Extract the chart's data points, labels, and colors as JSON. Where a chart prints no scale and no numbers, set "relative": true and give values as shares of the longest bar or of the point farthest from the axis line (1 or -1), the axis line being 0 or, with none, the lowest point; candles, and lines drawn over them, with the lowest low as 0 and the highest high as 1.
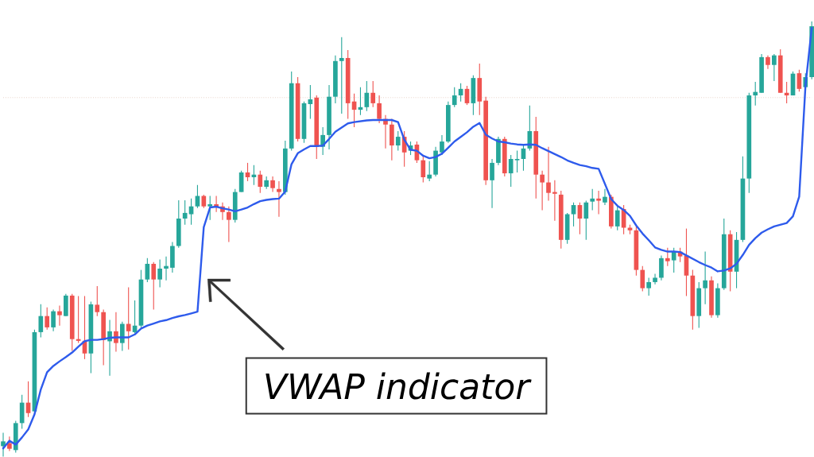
{
  "chart_data": [
    {
      "type": "candlestick",
      "relative": true,
      "categories": [
        null,
        null,
        null,
        null,
        null,
        null,
        null,
        null,
        null,
        null,
        null,
        null,
        null,
        null,
        null,
        null,
        null,
        null,
        null,
        null,
        null,
        null,
        null,
        null,
        null,
        null,
        null,
        null,
        null,
        null,
        null,
        null,
        null,
        null,
        null,
        null,
        null,
        null,
        null,
        null,
        null,
        null,
        null,
        null,
        null,
        null,
        null,
        null,
        null,
        null,
        null,
        null,
        null,
        null,
        null,
        null,
        null,
        null,
        null,
        null,
        null,
        null,
        null,
        null,
        null,
        null,
        null,
        null,
        null,
        null,
        null,
        null,
        null,
        null,
        null,
        null,
        null,
        null,
        null,
        null,
        null,
        null,
        null,
        null,
        null,
        null,
        null,
        null,
        null,
        null,
        null,
        null,
        null,
        null,
        null,
        null,
        null,
        null,
        null,
        null,
        null,
        null,
        null,
        null,
        null,
        null,
        null,
        null,
        null,
        null,
        null,
        null,
        null,
        null,
        null,
        null,
        null,
        null,
        null,
        null,
        null,
        null,
        null,
        null,
        null,
        null,
        null,
        null,
        null,
        null
      ],
      "ohlc": [
        [
          0.024,
          0.055,
          0,
          0.035
        ],
        [
          0.031,
          0.046,
          0.013,
          0.018
        ],
        [
          0.015,
          0.082,
          0.009,
          0.077
        ],
        [
          0.077,
          0.142,
          0.064,
          0.124
        ],
        [
          0.124,
          0.173,
          0.091,
          0.1
        ],
        [
          0.104,
          0.292,
          0.1,
          0.286
        ],
        [
          0.286,
          0.35,
          0.274,
          0.323
        ],
        [
          0.323,
          0.343,
          0.292,
          0.297
        ],
        [
          0.297,
          0.338,
          0.288,
          0.334
        ],
        [
          0.334,
          0.347,
          0.301,
          0.325
        ],
        [
          0.323,
          0.374,
          0.323,
          0.37
        ],
        [
          0.37,
          0.374,
          0.243,
          0.27
        ],
        [
          0.27,
          0.369,
          0.261,
          0.266
        ],
        [
          0.266,
          0.369,
          0.224,
          0.237
        ],
        [
          0.237,
          0.356,
          0.192,
          0.35
        ],
        [
          0.349,
          0.392,
          0.323,
          0.332
        ],
        [
          0.332,
          0.338,
          0.21,
          0.268
        ],
        [
          0.265,
          0.314,
          0.186,
          0.288
        ],
        [
          0.288,
          0.332,
          0.241,
          0.261
        ],
        [
          0.261,
          0.31,
          0.243,
          0.305
        ],
        [
          0.305,
          0.389,
          0.246,
          0.288
        ],
        [
          0.286,
          0.359,
          0.283,
          0.301
        ],
        [
          0.301,
          0.429,
          0.297,
          0.407
        ],
        [
          0.407,
          0.456,
          0.401,
          0.443
        ],
        [
          0.443,
          0.447,
          0.338,
          0.407
        ],
        [
          0.407,
          0.453,
          0.389,
          0.432
        ],
        [
          0.432,
          0.46,
          0.405,
          0.438
        ],
        [
          0.434,
          0.493,
          0.423,
          0.484
        ],
        [
          0.484,
          0.589,
          0.48,
          0.547
        ],
        [
          0.547,
          0.589,
          0.533,
          0.56
        ],
        [
          0.557,
          0.593,
          0.533,
          0.575
        ],
        [
          0.575,
          0.624,
          0.571,
          0.599
        ],
        [
          0.599,
          0.602,
          0.571,
          0.575
        ],
        [
          0.575,
          0.599,
          0.544,
          0.58
        ],
        [
          0.58,
          0.599,
          0.562,
          0.573
        ],
        [
          0.575,
          0.584,
          0.544,
          0.562
        ],
        [
          0.562,
          0.575,
          0.493,
          0.544
        ],
        [
          0.544,
          0.615,
          0.538,
          0.608
        ],
        [
          0.608,
          0.657,
          0.608,
          0.653
        ],
        [
          0.653,
          0.675,
          0.633,
          0.642
        ],
        [
          0.642,
          0.67,
          0.624,
          0.648
        ],
        [
          0.648,
          0.657,
          0.606,
          0.62
        ],
        [
          0.62,
          0.644,
          0.615,
          0.635
        ],
        [
          0.635,
          0.644,
          0.608,
          0.617
        ],
        [
          0.615,
          0.633,
          0.551,
          0.608
        ],
        [
          0.608,
          0.726,
          0.602,
          0.708
        ],
        [
          0.708,
          0.885,
          0.703,
          0.858
        ],
        [
          0.858,
          0.872,
          0.724,
          0.73
        ],
        [
          0.73,
          0.816,
          0.721,
          0.812
        ],
        [
          0.81,
          0.854,
          0.776,
          0.821
        ],
        [
          0.825,
          0.83,
          0.684,
          0.712
        ],
        [
          0.712,
          0.757,
          0.693,
          0.739
        ],
        [
          0.739,
          0.854,
          0.706,
          0.827
        ],
        [
          0.827,
          0.922,
          0.812,
          0.909
        ],
        [
          0.909,
          0.964,
          0.788,
          0.916
        ],
        [
          0.916,
          0.934,
          0.776,
          0.812
        ],
        [
          0.816,
          0.834,
          0.757,
          0.797
        ],
        [
          0.797,
          0.849,
          0.785,
          0.803
        ],
        [
          0.803,
          0.863,
          0.794,
          0.836
        ],
        [
          0.836,
          0.863,
          0.803,
          0.812
        ],
        [
          0.812,
          0.83,
          0.766,
          0.776
        ],
        [
          0.776,
          0.785,
          0.708,
          0.763
        ],
        [
          0.763,
          0.776,
          0.681,
          0.715
        ],
        [
          0.715,
          0.748,
          0.703,
          0.735
        ],
        [
          0.735,
          0.748,
          0.666,
          0.699
        ],
        [
          0.703,
          0.724,
          0.693,
          0.715
        ],
        [
          0.717,
          0.724,
          0.675,
          0.681
        ],
        [
          0.681,
          0.693,
          0.63,
          0.642
        ],
        [
          0.639,
          0.679,
          0.633,
          0.648
        ],
        [
          0.648,
          0.712,
          0.644,
          0.703
        ],
        [
          0.699,
          0.739,
          0.693,
          0.724
        ],
        [
          0.724,
          0.816,
          0.721,
          0.808
        ],
        [
          0.808,
          0.849,
          0.803,
          0.83
        ],
        [
          0.83,
          0.858,
          0.816,
          0.845
        ],
        [
          0.845,
          0.852,
          0.808,
          0.812
        ],
        [
          0.812,
          0.876,
          0.785,
          0.87
        ],
        [
          0.87,
          0.903,
          0.785,
          0.816
        ],
        [
          0.818,
          0.827,
          0.624,
          0.635
        ],
        [
          0.635,
          0.684,
          0.571,
          0.675
        ],
        [
          0.675,
          0.735,
          0.67,
          0.73
        ],
        [
          0.73,
          0.735,
          0.644,
          0.651
        ],
        [
          0.651,
          0.693,
          0.62,
          0.684
        ],
        [
          0.681,
          0.703,
          0.653,
          0.684
        ],
        [
          0.684,
          0.715,
          0.657,
          0.708
        ],
        [
          0.708,
          0.807,
          0.703,
          0.748
        ],
        [
          0.748,
          0.781,
          0.593,
          0.648
        ],
        [
          0.648,
          0.657,
          0.566,
          0.63
        ],
        [
          0.63,
          0.712,
          0.588,
          0.606
        ],
        [
          0.608,
          0.635,
          0.542,
          0.604
        ],
        [
          0.602,
          0.611,
          0.478,
          0.498
        ],
        [
          0.498,
          0.56,
          0.489,
          0.557
        ],
        [
          0.557,
          0.584,
          0.529,
          0.578
        ],
        [
          0.578,
          0.584,
          0.511,
          0.547
        ],
        [
          0.547,
          0.588,
          0.498,
          0.584
        ],
        [
          0.586,
          0.615,
          0.566,
          0.593
        ],
        [
          0.593,
          0.611,
          0.557,
          0.588
        ],
        [
          0.584,
          0.615,
          0.578,
          0.597
        ],
        [
          0.597,
          0.602,
          0.524,
          0.529
        ],
        [
          0.529,
          0.575,
          0.52,
          0.566
        ],
        [
          0.569,
          0.578,
          0.511,
          0.526
        ],
        [
          0.526,
          0.533,
          0.511,
          0.52
        ],
        [
          0.52,
          0.529,
          0.416,
          0.429
        ],
        [
          0.429,
          0.438,
          0.38,
          0.387
        ],
        [
          0.387,
          0.411,
          0.37,
          0.401
        ],
        [
          0.401,
          0.42,
          0.396,
          0.411
        ],
        [
          0.411,
          0.462,
          0.405,
          0.456
        ],
        [
          0.456,
          0.48,
          0.438,
          0.449
        ],
        [
          0.451,
          0.48,
          0.423,
          0.471
        ],
        [
          0.471,
          0.48,
          0.447,
          0.46
        ],
        [
          0.462,
          0.524,
          0.369,
          0.416
        ],
        [
          0.416,
          0.429,
          0.292,
          0.323
        ],
        [
          0.323,
          0.401,
          0.296,
          0.387
        ],
        [
          0.387,
          0.471,
          0.35,
          0.405
        ],
        [
          0.405,
          0.414,
          0.319,
          0.325
        ],
        [
          0.325,
          0.398,
          0.319,
          0.387
        ],
        [
          0.387,
          0.547,
          0.383,
          0.511
        ],
        [
          0.511,
          0.52,
          0.38,
          0.425
        ],
        [
          0.425,
          0.516,
          0.387,
          0.498
        ],
        [
          0.498,
          0.69,
          0.493,
          0.639
        ],
        [
          0.639,
          0.836,
          0.606,
          0.83
        ],
        [
          0.83,
          0.861,
          0.807,
          0.838
        ],
        [
          0.836,
          0.925,
          0.836,
          0.918
        ],
        [
          0.918,
          0.922,
          0.891,
          0.9
        ],
        [
          0.9,
          0.925,
          0.863,
          0.922
        ],
        [
          0.922,
          0.936,
          0.836,
          0.836
        ],
        [
          0.836,
          0.861,
          0.812,
          0.83
        ],
        [
          0.83,
          0.885,
          0.83,
          0.88
        ],
        [
          0.881,
          0.889,
          0.839,
          0.845
        ],
        [
          0.849,
          0.881,
          0.845,
          0.872
        ],
        [
          0.872,
          1,
          0.867,
          0.989
        ]
      ],
      "colors": [
        "#26a69a",
        "#ef5350",
        "#26a69a",
        "#26a69a",
        "#ef5350",
        "#26a69a",
        "#26a69a",
        "#ef5350",
        "#26a69a",
        "#ef5350",
        "#26a69a",
        "#ef5350",
        "#ef5350",
        "#ef5350",
        "#26a69a",
        "#ef5350",
        "#ef5350",
        "#26a69a",
        "#ef5350",
        "#26a69a",
        "#ef5350",
        "#26a69a",
        "#26a69a",
        "#26a69a",
        "#ef5350",
        "#26a69a",
        "#26a69a",
        "#26a69a",
        "#26a69a",
        "#26a69a",
        "#26a69a",
        "#26a69a",
        "#ef5350",
        "#26a69a",
        "#ef5350",
        "#ef5350",
        "#ef5350",
        "#26a69a",
        "#26a69a",
        "#ef5350",
        "#26a69a",
        "#ef5350",
        "#26a69a",
        "#ef5350",
        "#ef5350",
        "#26a69a",
        "#26a69a",
        "#ef5350",
        "#26a69a",
        "#26a69a",
        "#ef5350",
        "#26a69a",
        "#26a69a",
        "#26a69a",
        "#26a69a",
        "#ef5350",
        "#ef5350",
        "#26a69a",
        "#26a69a",
        "#ef5350",
        "#ef5350",
        "#ef5350",
        "#ef5350",
        "#26a69a",
        "#ef5350",
        "#26a69a",
        "#ef5350",
        "#ef5350",
        "#26a69a",
        "#26a69a",
        "#26a69a",
        "#26a69a",
        "#26a69a",
        "#26a69a",
        "#ef5350",
        "#26a69a",
        "#ef5350",
        "#ef5350",
        "#26a69a",
        "#26a69a",
        "#ef5350",
        "#26a69a",
        "#26a69a",
        "#26a69a",
        "#26a69a",
        "#ef5350",
        "#ef5350",
        "#ef5350",
        "#ef5350",
        "#ef5350",
        "#26a69a",
        "#26a69a",
        "#ef5350",
        "#26a69a",
        "#26a69a",
        "#ef5350",
        "#26a69a",
        "#ef5350",
        "#26a69a",
        "#ef5350",
        "#ef5350",
        "#ef5350",
        "#ef5350",
        "#26a69a",
        "#26a69a",
        "#26a69a",
        "#ef5350",
        "#26a69a",
        "#ef5350",
        "#ef5350",
        "#ef5350",
        "#26a69a",
        "#26a69a",
        "#ef5350",
        "#26a69a",
        "#26a69a",
        "#ef5350",
        "#26a69a",
        "#26a69a",
        "#26a69a",
        "#26a69a",
        "#26a69a",
        "#ef5350",
        "#26a69a",
        "#ef5350",
        "#ef5350",
        "#26a69a",
        "#ef5350",
        "#26a69a",
        "#26a69a"
      ],
      "ref_lines": [
        {
          "axis": "y",
          "value": 0.825,
          "color": "#e3c9bd",
          "line_style": "dotted"
        }
      ]
    },
    {
      "type": "line",
      "relative": true,
      "color": "#2e5bec",
      "categories": [
        null,
        null,
        null,
        null,
        null,
        null,
        null,
        null,
        null,
        null,
        null,
        null,
        null,
        null,
        null,
        null,
        null,
        null,
        null,
        null,
        null,
        null,
        null,
        null,
        null,
        null,
        null,
        null,
        null,
        null,
        null,
        null,
        null,
        null,
        null,
        null,
        null,
        null,
        null,
        null,
        null,
        null,
        null,
        null,
        null,
        null,
        null,
        null,
        null,
        null,
        null,
        null,
        null,
        null,
        null,
        null,
        null,
        null,
        null,
        null,
        null,
        null,
        null,
        null,
        null,
        null,
        null,
        null,
        null,
        null,
        null,
        null,
        null,
        null,
        null,
        null,
        null,
        null,
        null,
        null,
        null,
        null,
        null,
        null,
        null,
        null,
        null,
        null,
        null,
        null,
        null,
        null,
        null,
        null,
        null,
        null,
        null,
        null,
        null,
        null,
        null,
        null,
        null,
        null,
        null,
        null,
        null,
        null,
        null,
        null,
        null,
        null,
        null,
        null,
        null,
        null,
        null,
        null,
        null,
        null,
        null,
        null,
        null,
        null,
        null,
        null,
        null,
        null,
        null,
        null
      ],
      "values": [
        0,
        0.018,
        0.009,
        0.026,
        0.045,
        0.081,
        0.14,
        0.181,
        0.196,
        0.207,
        0.217,
        0.228,
        0.242,
        0.255,
        0.258,
        0.258,
        0.26,
        0.263,
        0.264,
        0.264,
        0.264,
        0.271,
        0.285,
        0.292,
        0.297,
        0.302,
        0.305,
        0.31,
        0.314,
        0.317,
        0.321,
        0.325,
        0.526,
        0.573,
        0.575,
        0.571,
        0.568,
        0.564,
        0.568,
        0.573,
        0.581,
        0.588,
        0.591,
        0.593,
        0.594,
        0.611,
        0.676,
        0.702,
        0.711,
        0.719,
        0.719,
        0.72,
        0.736,
        0.753,
        0.763,
        0.773,
        0.776,
        0.778,
        0.78,
        0.781,
        0.781,
        0.781,
        0.781,
        0.776,
        0.734,
        0.71,
        0.708,
        0.696,
        0.69,
        0.693,
        0.701,
        0.715,
        0.73,
        0.741,
        0.752,
        0.765,
        0.774,
        0.746,
        0.737,
        0.73,
        0.728,
        0.725,
        0.723,
        0.722,
        0.723,
        0.722,
        0.714,
        0.707,
        0.7,
        0.693,
        0.685,
        0.679,
        0.674,
        0.671,
        0.667,
        0.665,
        0.629,
        0.593,
        0.577,
        0.567,
        0.553,
        0.53,
        0.511,
        0.495,
        0.478,
        0.472,
        0.468,
        0.468,
        0.467,
        0.459,
        0.451,
        0.443,
        0.436,
        0.43,
        0.421,
        0.423,
        0.428,
        0.439,
        0.46,
        0.484,
        0.5,
        0.513,
        0.521,
        0.528,
        0.532,
        0.536,
        0.552,
        0.599,
        0.863,
        1.0
      ],
      "annotations": [
        "VWAP indicator"
      ]
    }
  ]
}
